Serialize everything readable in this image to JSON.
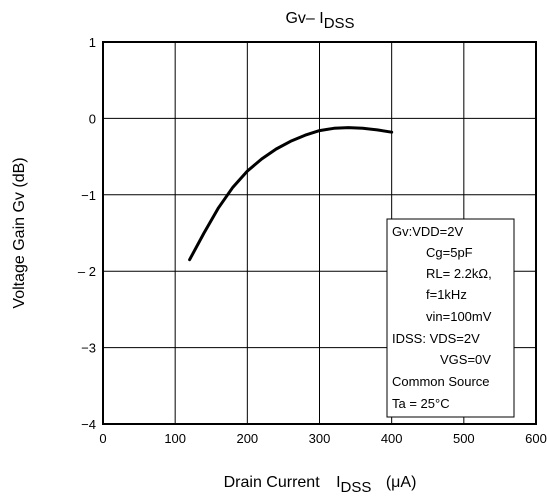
{
  "chart_data": {
    "type": "line",
    "title_main": "Gv– I",
    "title_sub": "DSS",
    "xlabel_main": "Drain Current",
    "xlabel_sub": "DSS",
    "xlabel_unit": "(μA)",
    "xlabel_I": "I",
    "ylabel": "Voltage Gain Gv (dB)",
    "xlim": [
      0,
      600
    ],
    "ylim": [
      -4,
      1
    ],
    "x_ticks": [
      0,
      100,
      200,
      300,
      400,
      500,
      600
    ],
    "x_tick_labels": [
      "0",
      "100",
      "200",
      "300",
      "400",
      "500",
      "600"
    ],
    "y_ticks": [
      1,
      0,
      -1,
      -2,
      -3,
      -4
    ],
    "y_tick_labels": [
      "1",
      "0",
      "−1",
      "– 2",
      "−3",
      "−4"
    ],
    "grid": true,
    "series": [
      {
        "x": [
          120,
          140,
          160,
          180,
          200,
          220,
          240,
          260,
          280,
          300,
          320,
          340,
          360,
          380,
          400
        ],
        "y": [
          -1.85,
          -1.5,
          -1.17,
          -0.9,
          -0.69,
          -0.53,
          -0.4,
          -0.3,
          -0.22,
          -0.16,
          -0.13,
          -0.12,
          -0.13,
          -0.15,
          -0.18
        ]
      }
    ],
    "legend_lines": [
      "Gv:VDD=2V",
      "Cg=5pF",
      "RL= 2.2kΩ,",
      "f=1kHz",
      "vin=100mV",
      "IDSS: VDS=2V",
      "VGS=0V",
      "Common Source",
      "Ta = 25°C"
    ],
    "legend_placement": "bottom-right"
  }
}
